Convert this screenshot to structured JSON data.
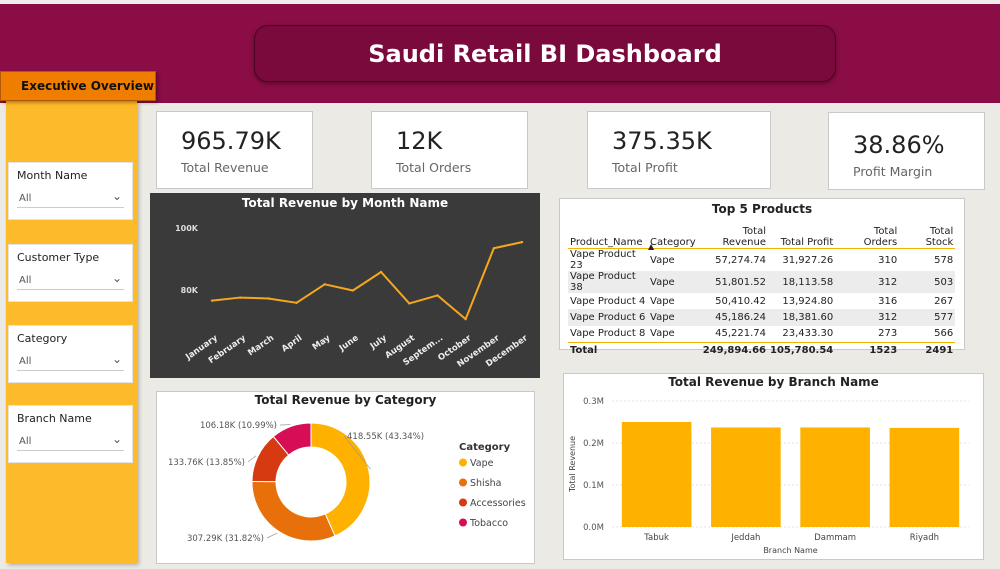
{
  "header": {
    "title": "Saudi Retail BI Dashboard",
    "page_tab": "Executive Overview"
  },
  "colors": {
    "banner": "#8b0d45",
    "accent": "#fdbb2b",
    "tab": "#ef7d00",
    "vape": "#ffb100",
    "shisha": "#e8700a",
    "accessories": "#d63a10",
    "tobacco": "#d50e56"
  },
  "slicers": [
    {
      "label": "Month Name",
      "value": "All"
    },
    {
      "label": "Customer Type",
      "value": "All"
    },
    {
      "label": "Category",
      "value": "All"
    },
    {
      "label": "Branch Name",
      "value": "All"
    }
  ],
  "kpis": [
    {
      "value": "965.79K",
      "label": "Total Revenue"
    },
    {
      "value": "12K",
      "label": "Total Orders"
    },
    {
      "value": "375.35K",
      "label": "Total Profit"
    },
    {
      "value": "38.86%",
      "label": "Profit Margin"
    }
  ],
  "top5": {
    "title": "Top 5 Products",
    "columns": [
      "Product_Name",
      "Category",
      "Total Revenue",
      "Total Profit",
      "Total Orders",
      "Total Stock"
    ],
    "sort_icon": "sort-ascending-icon",
    "rows": [
      [
        "Vape Product 23",
        "Vape",
        "57,274.74",
        "31,927.26",
        "310",
        "578"
      ],
      [
        "Vape Product 38",
        "Vape",
        "51,801.52",
        "18,113.58",
        "312",
        "503"
      ],
      [
        "Vape Product 4",
        "Vape",
        "50,410.42",
        "13,924.80",
        "316",
        "267"
      ],
      [
        "Vape Product 6",
        "Vape",
        "45,186.24",
        "18,381.60",
        "312",
        "577"
      ],
      [
        "Vape Product 8",
        "Vape",
        "45,221.74",
        "23,433.30",
        "273",
        "566"
      ]
    ],
    "total": [
      "Total",
      "",
      "249,894.66",
      "105,780.54",
      "1523",
      "2491"
    ]
  },
  "chart_data": [
    {
      "type": "line",
      "title": "Total Revenue by Month Name",
      "categories": [
        "January",
        "February",
        "March",
        "April",
        "May",
        "June",
        "July",
        "August",
        "Septem...",
        "October",
        "November",
        "December"
      ],
      "values": [
        76500,
        77500,
        77200,
        75800,
        81800,
        79800,
        85800,
        75600,
        78200,
        70500,
        93500,
        95500
      ],
      "ytick_labels": [
        "80K",
        "100K"
      ],
      "ylim": [
        66000,
        103000
      ],
      "line_color": "#f4a81d",
      "background": "#3a3a3a"
    },
    {
      "type": "pie",
      "title": "Total Revenue by Category",
      "legend_title": "Category",
      "legend_position": "right",
      "slices": [
        {
          "name": "Vape",
          "value": 418550,
          "label": "418.55K (43.34%)",
          "color": "#ffb100"
        },
        {
          "name": "Shisha",
          "value": 307290,
          "label": "307.29K (31.82%)",
          "color": "#e8700a"
        },
        {
          "name": "Accessories",
          "value": 133760,
          "label": "133.76K (13.85%)",
          "color": "#d63a10"
        },
        {
          "name": "Tobacco",
          "value": 106180,
          "label": "106.18K (10.99%)",
          "color": "#d50e56"
        }
      ]
    },
    {
      "type": "bar",
      "title": "Total Revenue by Branch Name",
      "categories": [
        "Tabuk",
        "Jeddah",
        "Dammam",
        "Riyadh"
      ],
      "values": [
        250000,
        237000,
        237000,
        236000
      ],
      "xlabel": "Branch Name",
      "ylabel": "Total Revenue",
      "ytick_labels": [
        "0.0M",
        "0.1M",
        "0.2M",
        "0.3M"
      ],
      "ylim": [
        0,
        300000
      ],
      "bar_color": "#ffb100",
      "grid": true
    }
  ]
}
